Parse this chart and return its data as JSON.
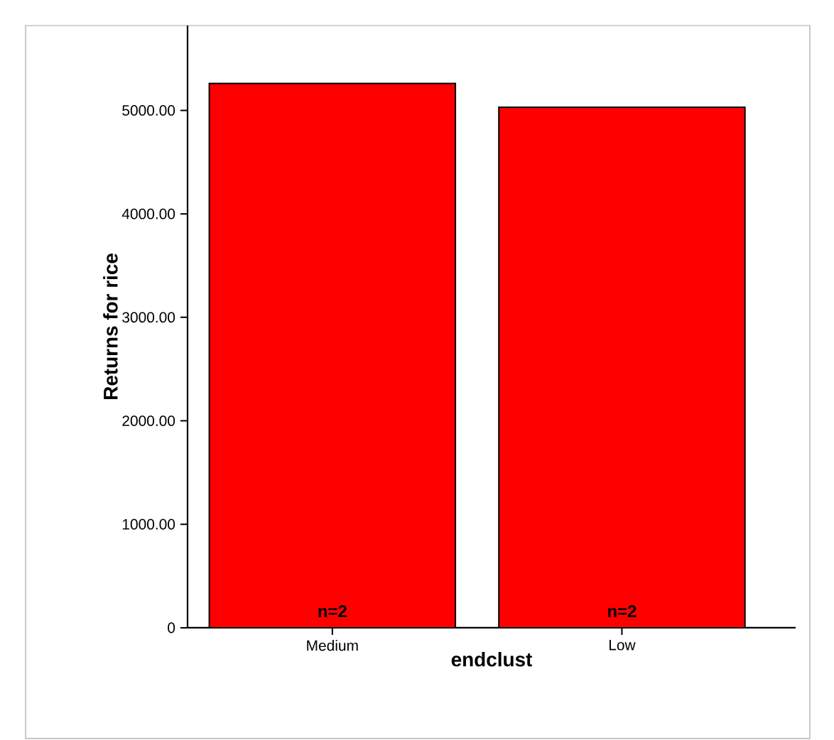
{
  "chart_data": {
    "type": "bar",
    "xlabel": "endclust",
    "ylabel": "Returns for rice",
    "categories": [
      "Medium",
      "Low"
    ],
    "values": [
      5260,
      5030
    ],
    "color": "#ff0000",
    "ylim": [
      0,
      5820
    ],
    "yticks": [
      {
        "value": 0,
        "label": "0"
      },
      {
        "value": 1000,
        "label": "1000.00"
      },
      {
        "value": 2000,
        "label": "2000.00"
      },
      {
        "value": 3000,
        "label": "3000.00"
      },
      {
        "value": 4000,
        "label": "4000.00"
      },
      {
        "value": 5000,
        "label": "5000.00"
      }
    ],
    "annotations": [
      "n=2",
      "n=2"
    ]
  }
}
